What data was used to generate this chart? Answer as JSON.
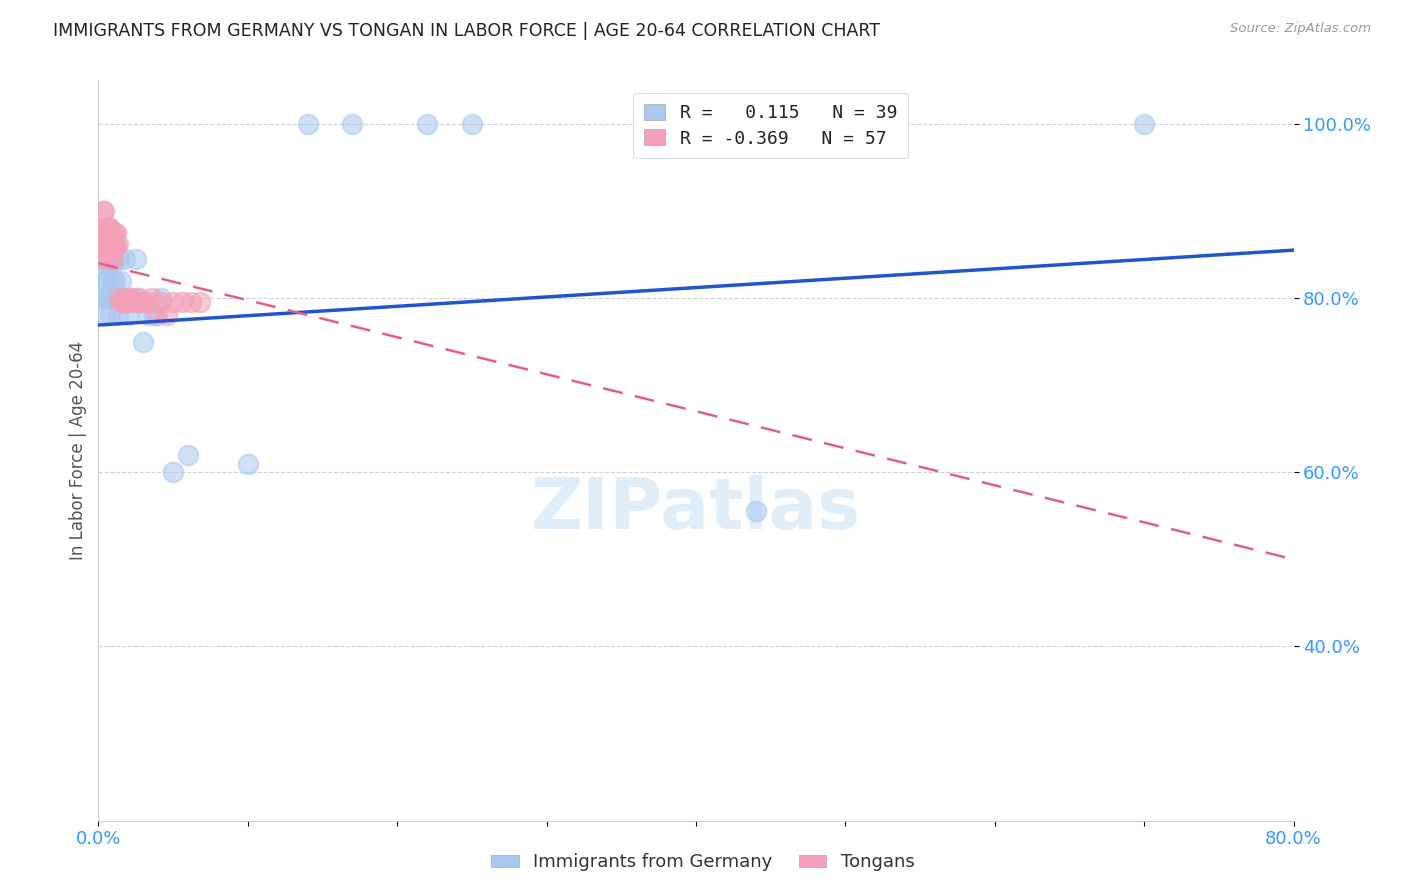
{
  "title": "IMMIGRANTS FROM GERMANY VS TONGAN IN LABOR FORCE | AGE 20-64 CORRELATION CHART",
  "source": "Source: ZipAtlas.com",
  "ylabel": "In Labor Force | Age 20-64",
  "xlim": [
    0.0,
    0.8
  ],
  "ylim": [
    0.2,
    1.05
  ],
  "x_ticks": [
    0.0,
    0.1,
    0.2,
    0.3,
    0.4,
    0.5,
    0.6,
    0.7,
    0.8
  ],
  "x_tick_labels": [
    "0.0%",
    "",
    "",
    "",
    "",
    "",
    "",
    "",
    "80.0%"
  ],
  "y_ticks": [
    0.4,
    0.6,
    0.8,
    1.0
  ],
  "y_tick_labels": [
    "40.0%",
    "60.0%",
    "80.0%",
    "100.0%"
  ],
  "germany_R": 0.115,
  "germany_N": 39,
  "tongan_R": -0.369,
  "tongan_N": 57,
  "germany_color": "#a8c8f0",
  "tongan_color": "#f4a0b8",
  "germany_line_color": "#2255cc",
  "tongan_line_color": "#e06080",
  "watermark": "ZIPatlas",
  "germany_x": [
    0.003,
    0.004,
    0.004,
    0.005,
    0.005,
    0.005,
    0.006,
    0.006,
    0.007,
    0.007,
    0.008,
    0.008,
    0.009,
    0.01,
    0.01,
    0.011,
    0.012,
    0.013,
    0.014,
    0.015,
    0.016,
    0.018,
    0.02,
    0.022,
    0.025,
    0.027,
    0.03,
    0.033,
    0.037,
    0.042,
    0.05,
    0.06,
    0.1,
    0.14,
    0.17,
    0.22,
    0.25,
    0.44,
    0.7
  ],
  "germany_y": [
    0.84,
    0.84,
    0.8,
    0.82,
    0.8,
    0.78,
    0.82,
    0.8,
    0.845,
    0.84,
    0.8,
    0.78,
    0.82,
    0.84,
    0.8,
    0.82,
    0.8,
    0.78,
    0.845,
    0.82,
    0.8,
    0.845,
    0.78,
    0.8,
    0.845,
    0.8,
    0.75,
    0.78,
    0.78,
    0.8,
    0.6,
    0.62,
    0.61,
    1.0,
    1.0,
    1.0,
    1.0,
    0.555,
    1.0
  ],
  "tongan_x": [
    0.002,
    0.002,
    0.003,
    0.003,
    0.003,
    0.004,
    0.004,
    0.004,
    0.004,
    0.005,
    0.005,
    0.005,
    0.005,
    0.006,
    0.006,
    0.006,
    0.006,
    0.007,
    0.007,
    0.007,
    0.007,
    0.008,
    0.008,
    0.008,
    0.009,
    0.009,
    0.009,
    0.01,
    0.01,
    0.01,
    0.011,
    0.011,
    0.012,
    0.012,
    0.013,
    0.014,
    0.015,
    0.016,
    0.017,
    0.018,
    0.019,
    0.02,
    0.021,
    0.022,
    0.024,
    0.026,
    0.028,
    0.03,
    0.033,
    0.036,
    0.039,
    0.042,
    0.046,
    0.05,
    0.056,
    0.062,
    0.068
  ],
  "tongan_y": [
    0.88,
    0.86,
    0.9,
    0.87,
    0.855,
    0.875,
    0.86,
    0.845,
    0.9,
    0.875,
    0.87,
    0.86,
    0.855,
    0.88,
    0.875,
    0.862,
    0.85,
    0.88,
    0.875,
    0.862,
    0.855,
    0.88,
    0.875,
    0.862,
    0.875,
    0.862,
    0.845,
    0.875,
    0.86,
    0.845,
    0.875,
    0.86,
    0.875,
    0.86,
    0.862,
    0.8,
    0.795,
    0.795,
    0.8,
    0.795,
    0.795,
    0.795,
    0.8,
    0.795,
    0.795,
    0.8,
    0.795,
    0.795,
    0.795,
    0.8,
    0.78,
    0.795,
    0.78,
    0.795,
    0.795,
    0.795,
    0.795
  ],
  "germany_line_x": [
    0.0,
    0.8
  ],
  "germany_line_y": [
    0.769,
    0.855
  ],
  "tongan_line_x": [
    0.0,
    0.8
  ],
  "tongan_line_y": [
    0.84,
    0.5
  ]
}
